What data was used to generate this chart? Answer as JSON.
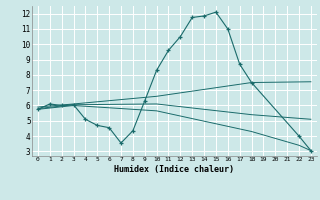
{
  "xlabel": "Humidex (Indice chaleur)",
  "xlim": [
    -0.5,
    23.5
  ],
  "ylim": [
    2.7,
    12.5
  ],
  "xticks": [
    0,
    1,
    2,
    3,
    4,
    5,
    6,
    7,
    8,
    9,
    10,
    11,
    12,
    13,
    14,
    15,
    16,
    17,
    18,
    19,
    20,
    21,
    22,
    23
  ],
  "yticks": [
    3,
    4,
    5,
    6,
    7,
    8,
    9,
    10,
    11,
    12
  ],
  "bg_color": "#cde8e8",
  "grid_color": "#ffffff",
  "line_color": "#1a6b6b",
  "lines": [
    {
      "x": [
        0,
        1,
        2,
        3,
        4,
        5,
        6,
        7,
        8,
        9,
        10,
        11,
        12,
        13,
        14,
        15,
        16,
        17,
        18,
        22,
        23
      ],
      "y": [
        5.75,
        6.1,
        6.0,
        6.05,
        5.1,
        4.7,
        4.55,
        3.55,
        4.35,
        6.3,
        8.3,
        9.6,
        10.5,
        11.75,
        11.85,
        12.1,
        11.0,
        8.7,
        7.5,
        4.0,
        3.05
      ],
      "markers": true
    },
    {
      "x": [
        0,
        3,
        10,
        18,
        23
      ],
      "y": [
        5.9,
        6.1,
        6.6,
        7.5,
        7.55
      ],
      "markers": false
    },
    {
      "x": [
        0,
        3,
        10,
        18,
        23
      ],
      "y": [
        5.8,
        6.05,
        6.1,
        5.4,
        5.1
      ],
      "markers": false
    },
    {
      "x": [
        0,
        3,
        10,
        18,
        22,
        23
      ],
      "y": [
        5.75,
        6.0,
        5.65,
        4.3,
        3.4,
        3.05
      ],
      "markers": false
    }
  ]
}
